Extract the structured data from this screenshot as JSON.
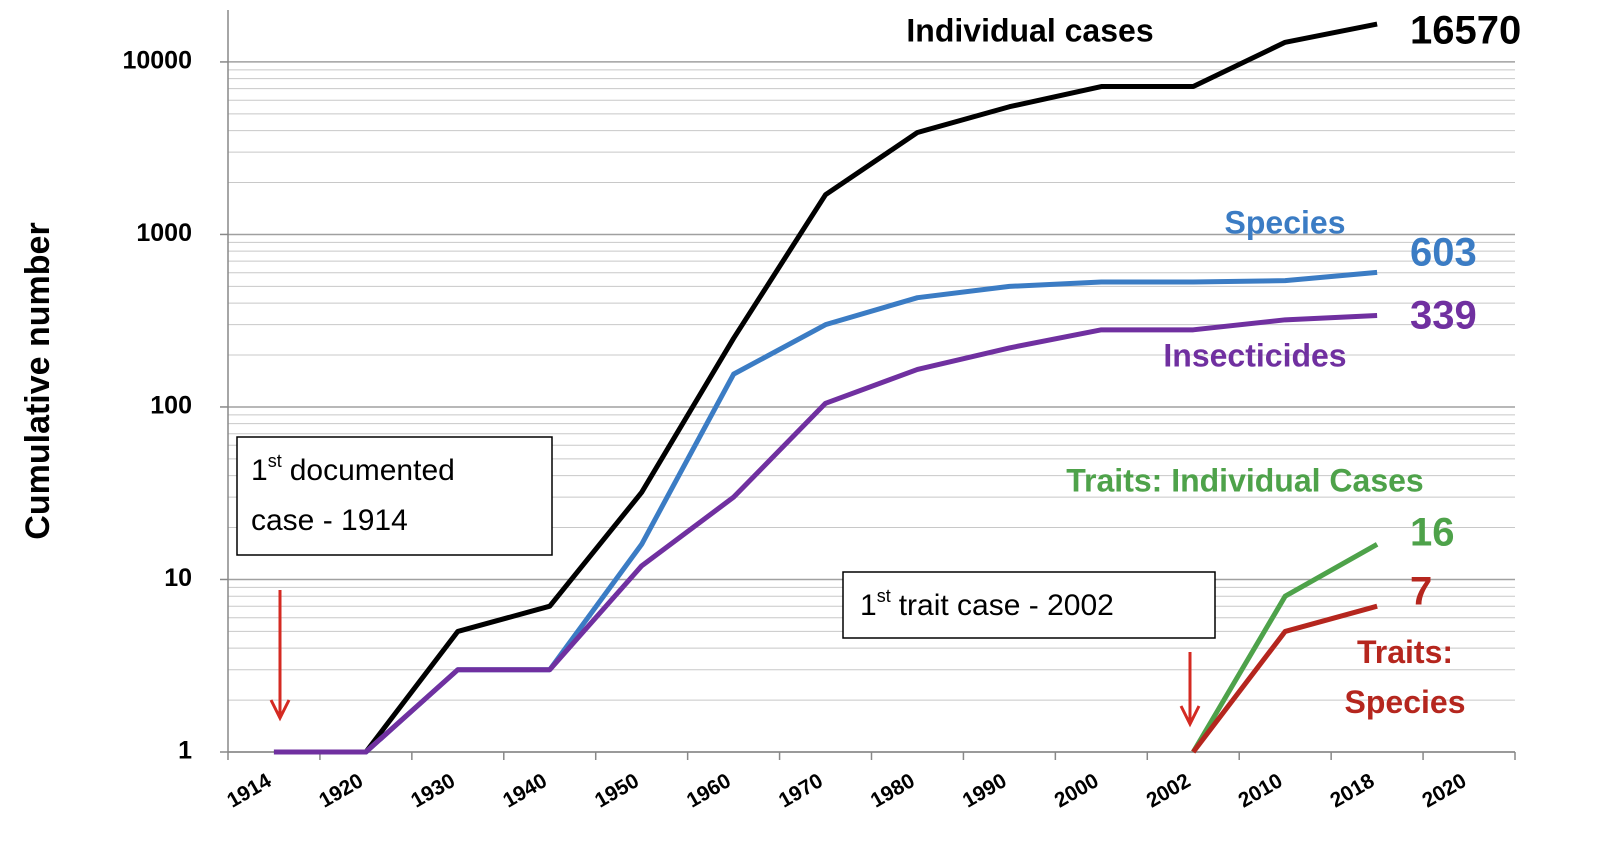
{
  "chart_data": {
    "type": "line",
    "y_label": "Cumulative number",
    "log_scale": true,
    "grid": true,
    "minor_grid": true,
    "categories": [
      "1914",
      "1920",
      "1930",
      "1940",
      "1950",
      "1960",
      "1970",
      "1980",
      "1990",
      "2000",
      "2002",
      "2010",
      "2018",
      "2020"
    ],
    "ylim": [
      1,
      20000
    ],
    "yticks": [
      1,
      10,
      100,
      1000,
      10000
    ],
    "series": [
      {
        "name": "Individual cases",
        "color": "#000000",
        "values": [
          1,
          1,
          5,
          7,
          32,
          250,
          1700,
          3900,
          5500,
          7200,
          7200,
          13000,
          16570,
          null
        ]
      },
      {
        "name": "Species",
        "color": "#3b7cc4",
        "values": [
          1,
          1,
          3,
          3,
          16,
          155,
          300,
          430,
          500,
          530,
          530,
          540,
          603,
          null
        ]
      },
      {
        "name": "Insecticides",
        "color": "#7030a0",
        "values": [
          1,
          1,
          3,
          3,
          12,
          30,
          105,
          165,
          220,
          280,
          280,
          320,
          339,
          null
        ]
      },
      {
        "name": "Traits: Individual Cases",
        "color": "#4ea24a",
        "values": [
          null,
          null,
          null,
          null,
          null,
          null,
          null,
          null,
          null,
          null,
          1,
          8,
          16,
          null
        ]
      },
      {
        "name": "Traits: Species",
        "color": "#b5261e",
        "values": [
          null,
          null,
          null,
          null,
          null,
          null,
          null,
          null,
          null,
          null,
          1,
          5,
          7,
          null
        ]
      }
    ],
    "annotations": [
      {
        "ordinal": "1",
        "suffix": "st",
        "lines": [
          "documented",
          "case - 1914"
        ]
      },
      {
        "ordinal": "1",
        "suffix": "st",
        "lines": [
          "trait case - 2002"
        ]
      }
    ]
  }
}
